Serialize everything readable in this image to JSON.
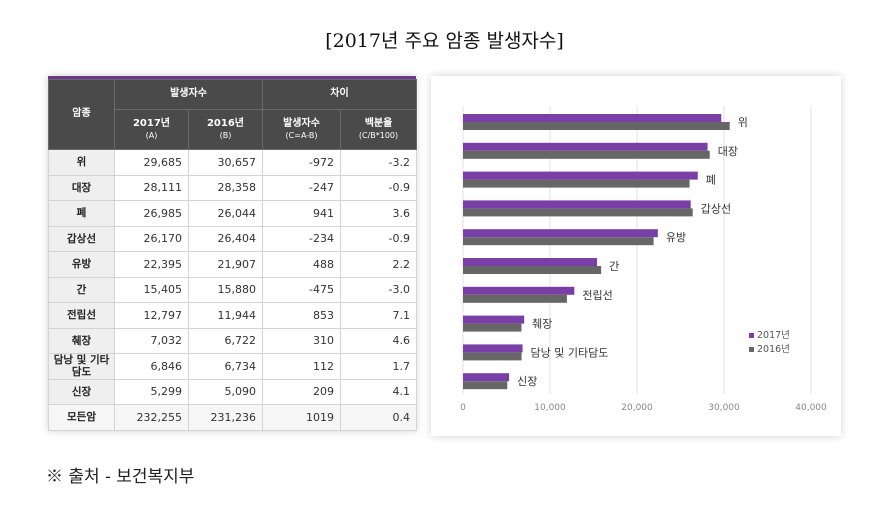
{
  "title": "[2017년 주요 암종 발생자수]",
  "table": {
    "header_type": "암종",
    "header_group_count": "발생자수",
    "header_group_diff": "차이",
    "col_2017": "2017년",
    "col_2017_sub": "(A)",
    "col_2016": "2016년",
    "col_2016_sub": "(B)",
    "col_diff": "발생자수",
    "col_diff_sub": "(C=A-B)",
    "col_pct": "백분율",
    "col_pct_sub": "(C/B*100)",
    "rows": [
      {
        "name": "위",
        "v2017": "29,685",
        "v2016": "30,657",
        "diff": "-972",
        "pct": "-3.2"
      },
      {
        "name": "대장",
        "v2017": "28,111",
        "v2016": "28,358",
        "diff": "-247",
        "pct": "-0.9"
      },
      {
        "name": "폐",
        "v2017": "26,985",
        "v2016": "26,044",
        "diff": "941",
        "pct": "3.6"
      },
      {
        "name": "갑상선",
        "v2017": "26,170",
        "v2016": "26,404",
        "diff": "-234",
        "pct": "-0.9"
      },
      {
        "name": "유방",
        "v2017": "22,395",
        "v2016": "21,907",
        "diff": "488",
        "pct": "2.2"
      },
      {
        "name": "간",
        "v2017": "15,405",
        "v2016": "15,880",
        "diff": "-475",
        "pct": "-3.0"
      },
      {
        "name": "전립선",
        "v2017": "12,797",
        "v2016": "11,944",
        "diff": "853",
        "pct": "7.1"
      },
      {
        "name": "췌장",
        "v2017": "7,032",
        "v2016": "6,722",
        "diff": "310",
        "pct": "4.6"
      },
      {
        "name": "담낭 및 기타담도",
        "v2017": "6,846",
        "v2016": "6,734",
        "diff": "112",
        "pct": "1.7"
      },
      {
        "name": "신장",
        "v2017": "5,299",
        "v2016": "5,090",
        "diff": "209",
        "pct": "4.1"
      },
      {
        "name": "모든암",
        "v2017": "232,255",
        "v2016": "231,236",
        "diff": "1019",
        "pct": "0.4"
      }
    ]
  },
  "chart_data": {
    "type": "bar",
    "orientation": "horizontal",
    "categories": [
      "위",
      "대장",
      "폐",
      "갑상선",
      "유방",
      "간",
      "전립선",
      "췌장",
      "담낭 및 기타담도",
      "신장"
    ],
    "series": [
      {
        "name": "2017년",
        "values": [
          29685,
          28111,
          26985,
          26170,
          22395,
          15405,
          12797,
          7032,
          6846,
          5299
        ]
      },
      {
        "name": "2016년",
        "values": [
          30657,
          28358,
          26044,
          26404,
          21907,
          15880,
          11944,
          6722,
          6734,
          5090
        ]
      }
    ],
    "xlim": [
      0,
      40000
    ],
    "xticks": [
      "0",
      "10,000",
      "20,000",
      "30,000",
      "40,000"
    ],
    "grid": true,
    "legend_position": "right",
    "colors": {
      "2017년": "#7a3fa6",
      "2016년": "#666666"
    }
  },
  "source": "※ 출처 - 보건복지부"
}
